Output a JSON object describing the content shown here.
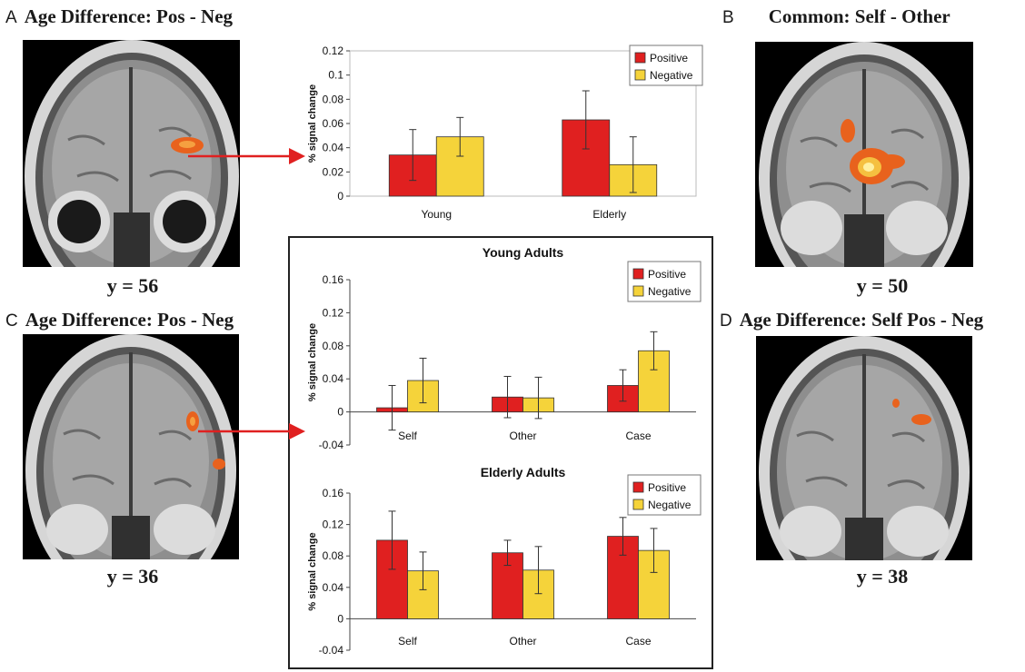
{
  "panels": {
    "a": {
      "letter": "A",
      "title": "Age Difference: Pos - Neg",
      "coord": "y = 56"
    },
    "b": {
      "letter": "B",
      "title": "Common: Self - Other",
      "coord": "y = 50"
    },
    "c": {
      "letter": "C",
      "title": "Age Difference: Pos - Neg",
      "coord": "y = 36"
    },
    "d": {
      "letter": "D",
      "title": "Age Difference: Self Pos - Neg",
      "coord": "y = 38"
    }
  },
  "colors": {
    "positive": "#e02020",
    "negative": "#f5d33a"
  },
  "chart_data": [
    {
      "id": "chart-a",
      "type": "bar",
      "title": "",
      "ylabel": "% signal change",
      "ylim": [
        0,
        0.12
      ],
      "yticks": [
        0,
        0.02,
        0.04,
        0.06,
        0.08,
        0.1,
        0.12
      ],
      "ytick_labels": [
        "0",
        "0.02",
        "0.04",
        "0.06",
        "0.08",
        "0.1",
        "0.12"
      ],
      "categories": [
        "Young",
        "Elderly"
      ],
      "series": [
        {
          "name": "Positive",
          "values": [
            0.034,
            0.063
          ],
          "errors": [
            0.021,
            0.024
          ]
        },
        {
          "name": "Negative",
          "values": [
            0.049,
            0.026
          ],
          "errors": [
            0.016,
            0.023
          ]
        }
      ],
      "legend": "top-right",
      "grid": false
    },
    {
      "id": "chart-young",
      "type": "bar",
      "title": "Young Adults",
      "ylabel": "% signal change",
      "ylim": [
        -0.04,
        0.16
      ],
      "yticks": [
        -0.04,
        0,
        0.04,
        0.08,
        0.12,
        0.16
      ],
      "ytick_labels": [
        "-0.04",
        "0",
        "0.04",
        "0.08",
        "0.12",
        "0.16"
      ],
      "categories": [
        "Self",
        "Other",
        "Case"
      ],
      "series": [
        {
          "name": "Positive",
          "values": [
            0.005,
            0.018,
            0.032
          ],
          "errors": [
            0.027,
            0.025,
            0.019
          ]
        },
        {
          "name": "Negative",
          "values": [
            0.038,
            0.017,
            0.074
          ],
          "errors": [
            0.027,
            0.025,
            0.023
          ]
        }
      ],
      "legend": "top-right",
      "grid": false
    },
    {
      "id": "chart-elderly",
      "type": "bar",
      "title": "Elderly Adults",
      "ylabel": "% signal change",
      "ylim": [
        -0.04,
        0.16
      ],
      "yticks": [
        -0.04,
        0,
        0.04,
        0.08,
        0.12,
        0.16
      ],
      "ytick_labels": [
        "-0.04",
        "0",
        "0.04",
        "0.08",
        "0.12",
        "0.16"
      ],
      "categories": [
        "Self",
        "Other",
        "Case"
      ],
      "series": [
        {
          "name": "Positive",
          "values": [
            0.1,
            0.084,
            0.105
          ],
          "errors": [
            0.037,
            0.016,
            0.024
          ]
        },
        {
          "name": "Negative",
          "values": [
            0.061,
            0.062,
            0.087
          ],
          "errors": [
            0.024,
            0.03,
            0.028
          ]
        }
      ],
      "legend": "top-right",
      "grid": false
    }
  ]
}
